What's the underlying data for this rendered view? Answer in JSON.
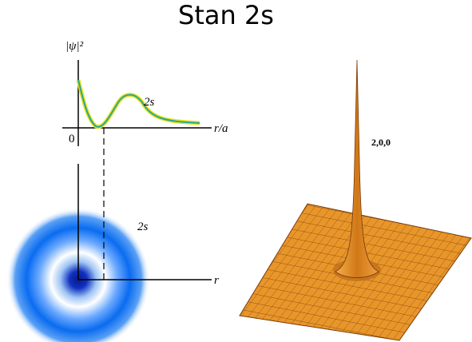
{
  "title": "Stan 2s",
  "top_plot": {
    "y_label": "|ψ|²",
    "curve_label": "2s",
    "x_label": "r/a",
    "origin_label": "0"
  },
  "bottom_plot": {
    "label": "2s",
    "axis_label": "r"
  },
  "surface": {
    "label": "2,0,0"
  }
}
